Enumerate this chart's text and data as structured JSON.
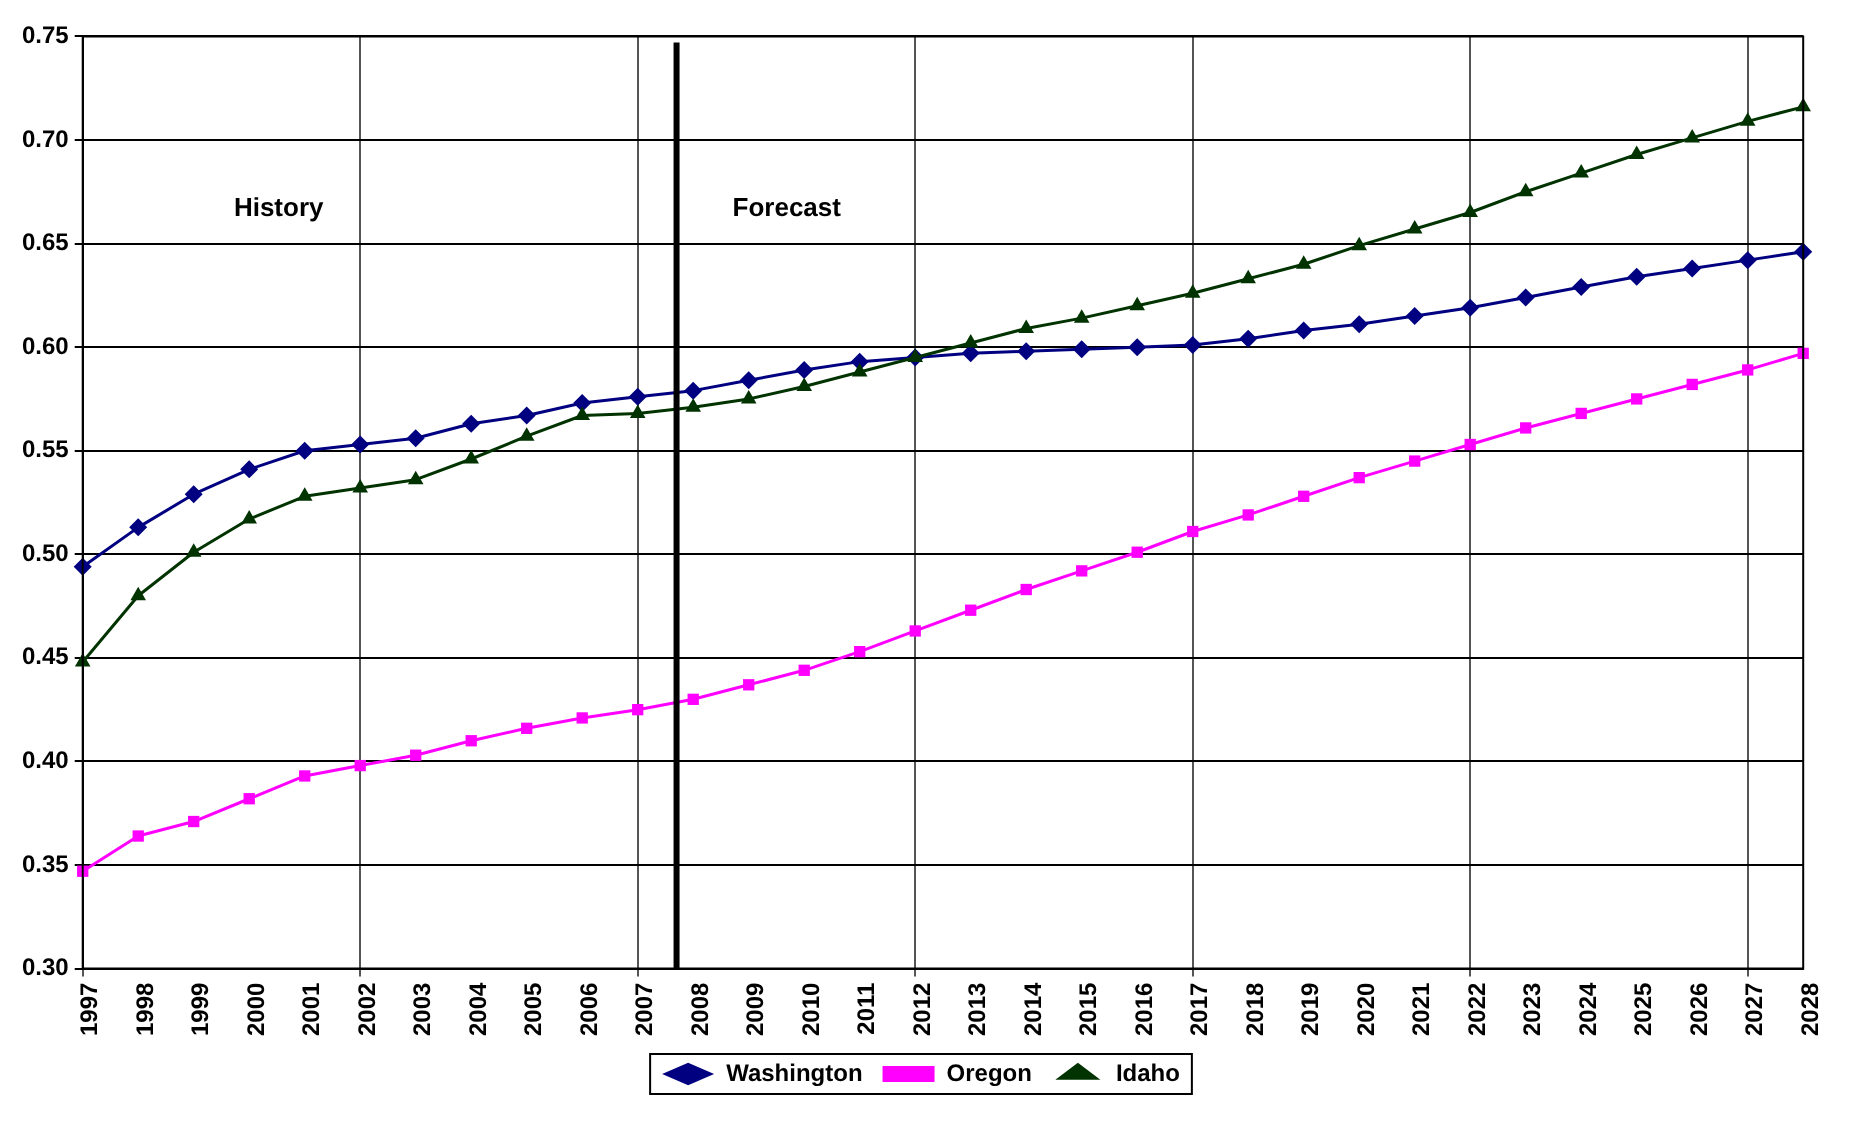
{
  "chart_data": {
    "type": "line",
    "x": [
      1997,
      1998,
      1999,
      2000,
      2001,
      2002,
      2003,
      2004,
      2005,
      2006,
      2007,
      2008,
      2009,
      2010,
      2011,
      2012,
      2013,
      2014,
      2015,
      2016,
      2017,
      2018,
      2019,
      2020,
      2021,
      2022,
      2023,
      2024,
      2025,
      2026,
      2027,
      2028
    ],
    "xlim": [
      1997,
      2028
    ],
    "xticks": [
      1997,
      1998,
      1999,
      2000,
      2001,
      2002,
      2003,
      2004,
      2005,
      2006,
      2007,
      2008,
      2009,
      2010,
      2011,
      2012,
      2013,
      2014,
      2015,
      2016,
      2017,
      2018,
      2019,
      2020,
      2021,
      2022,
      2023,
      2024,
      2025,
      2026,
      2027,
      2028
    ],
    "ylim": [
      0.3,
      0.75
    ],
    "yticks": [
      {
        "value": 0.3,
        "label": "0.30"
      },
      {
        "value": 0.35,
        "label": "0.35"
      },
      {
        "value": 0.4,
        "label": "0.40"
      },
      {
        "value": 0.45,
        "label": "0.45"
      },
      {
        "value": 0.5,
        "label": "0.50"
      },
      {
        "value": 0.55,
        "label": "0.55"
      },
      {
        "value": 0.6,
        "label": "0.60"
      },
      {
        "value": 0.65,
        "label": "0.65"
      },
      {
        "value": 0.7,
        "label": "0.70"
      },
      {
        "value": 0.75,
        "label": "0.75"
      }
    ],
    "series": [
      {
        "name": "Washington",
        "color": "#000080",
        "marker": "diamond",
        "values": [
          0.494,
          0.513,
          0.529,
          0.541,
          0.55,
          0.553,
          0.556,
          0.563,
          0.567,
          0.573,
          0.576,
          0.579,
          0.584,
          0.589,
          0.593,
          0.595,
          0.597,
          0.598,
          0.599,
          0.6,
          0.601,
          0.604,
          0.608,
          0.611,
          0.615,
          0.619,
          0.624,
          0.629,
          0.634,
          0.638,
          0.642,
          0.646
        ]
      },
      {
        "name": "Oregon",
        "color": "#ff00ff",
        "marker": "square",
        "values": [
          0.347,
          0.364,
          0.371,
          0.382,
          0.393,
          0.398,
          0.403,
          0.41,
          0.416,
          0.421,
          0.425,
          0.43,
          0.437,
          0.444,
          0.453,
          0.463,
          0.473,
          0.483,
          0.492,
          0.501,
          0.511,
          0.519,
          0.528,
          0.537,
          0.545,
          0.553,
          0.561,
          0.568,
          0.575,
          0.582,
          0.589,
          0.597
        ]
      },
      {
        "name": "Idaho",
        "color": "#003300",
        "marker": "triangle",
        "values": [
          0.448,
          0.48,
          0.501,
          0.517,
          0.528,
          0.532,
          0.536,
          0.546,
          0.557,
          0.567,
          0.568,
          0.571,
          0.575,
          0.581,
          0.588,
          0.595,
          0.602,
          0.609,
          0.614,
          0.62,
          0.626,
          0.633,
          0.64,
          0.649,
          0.657,
          0.665,
          0.675,
          0.684,
          0.693,
          0.701,
          0.709,
          0.716
        ]
      }
    ],
    "ref_lines": [
      {
        "axis": "x",
        "value": 2007.7,
        "color": "#000000"
      }
    ],
    "annotations": [
      "History",
      "Forecast"
    ],
    "grid": true,
    "legend": "bottom",
    "line_style": "solid"
  }
}
